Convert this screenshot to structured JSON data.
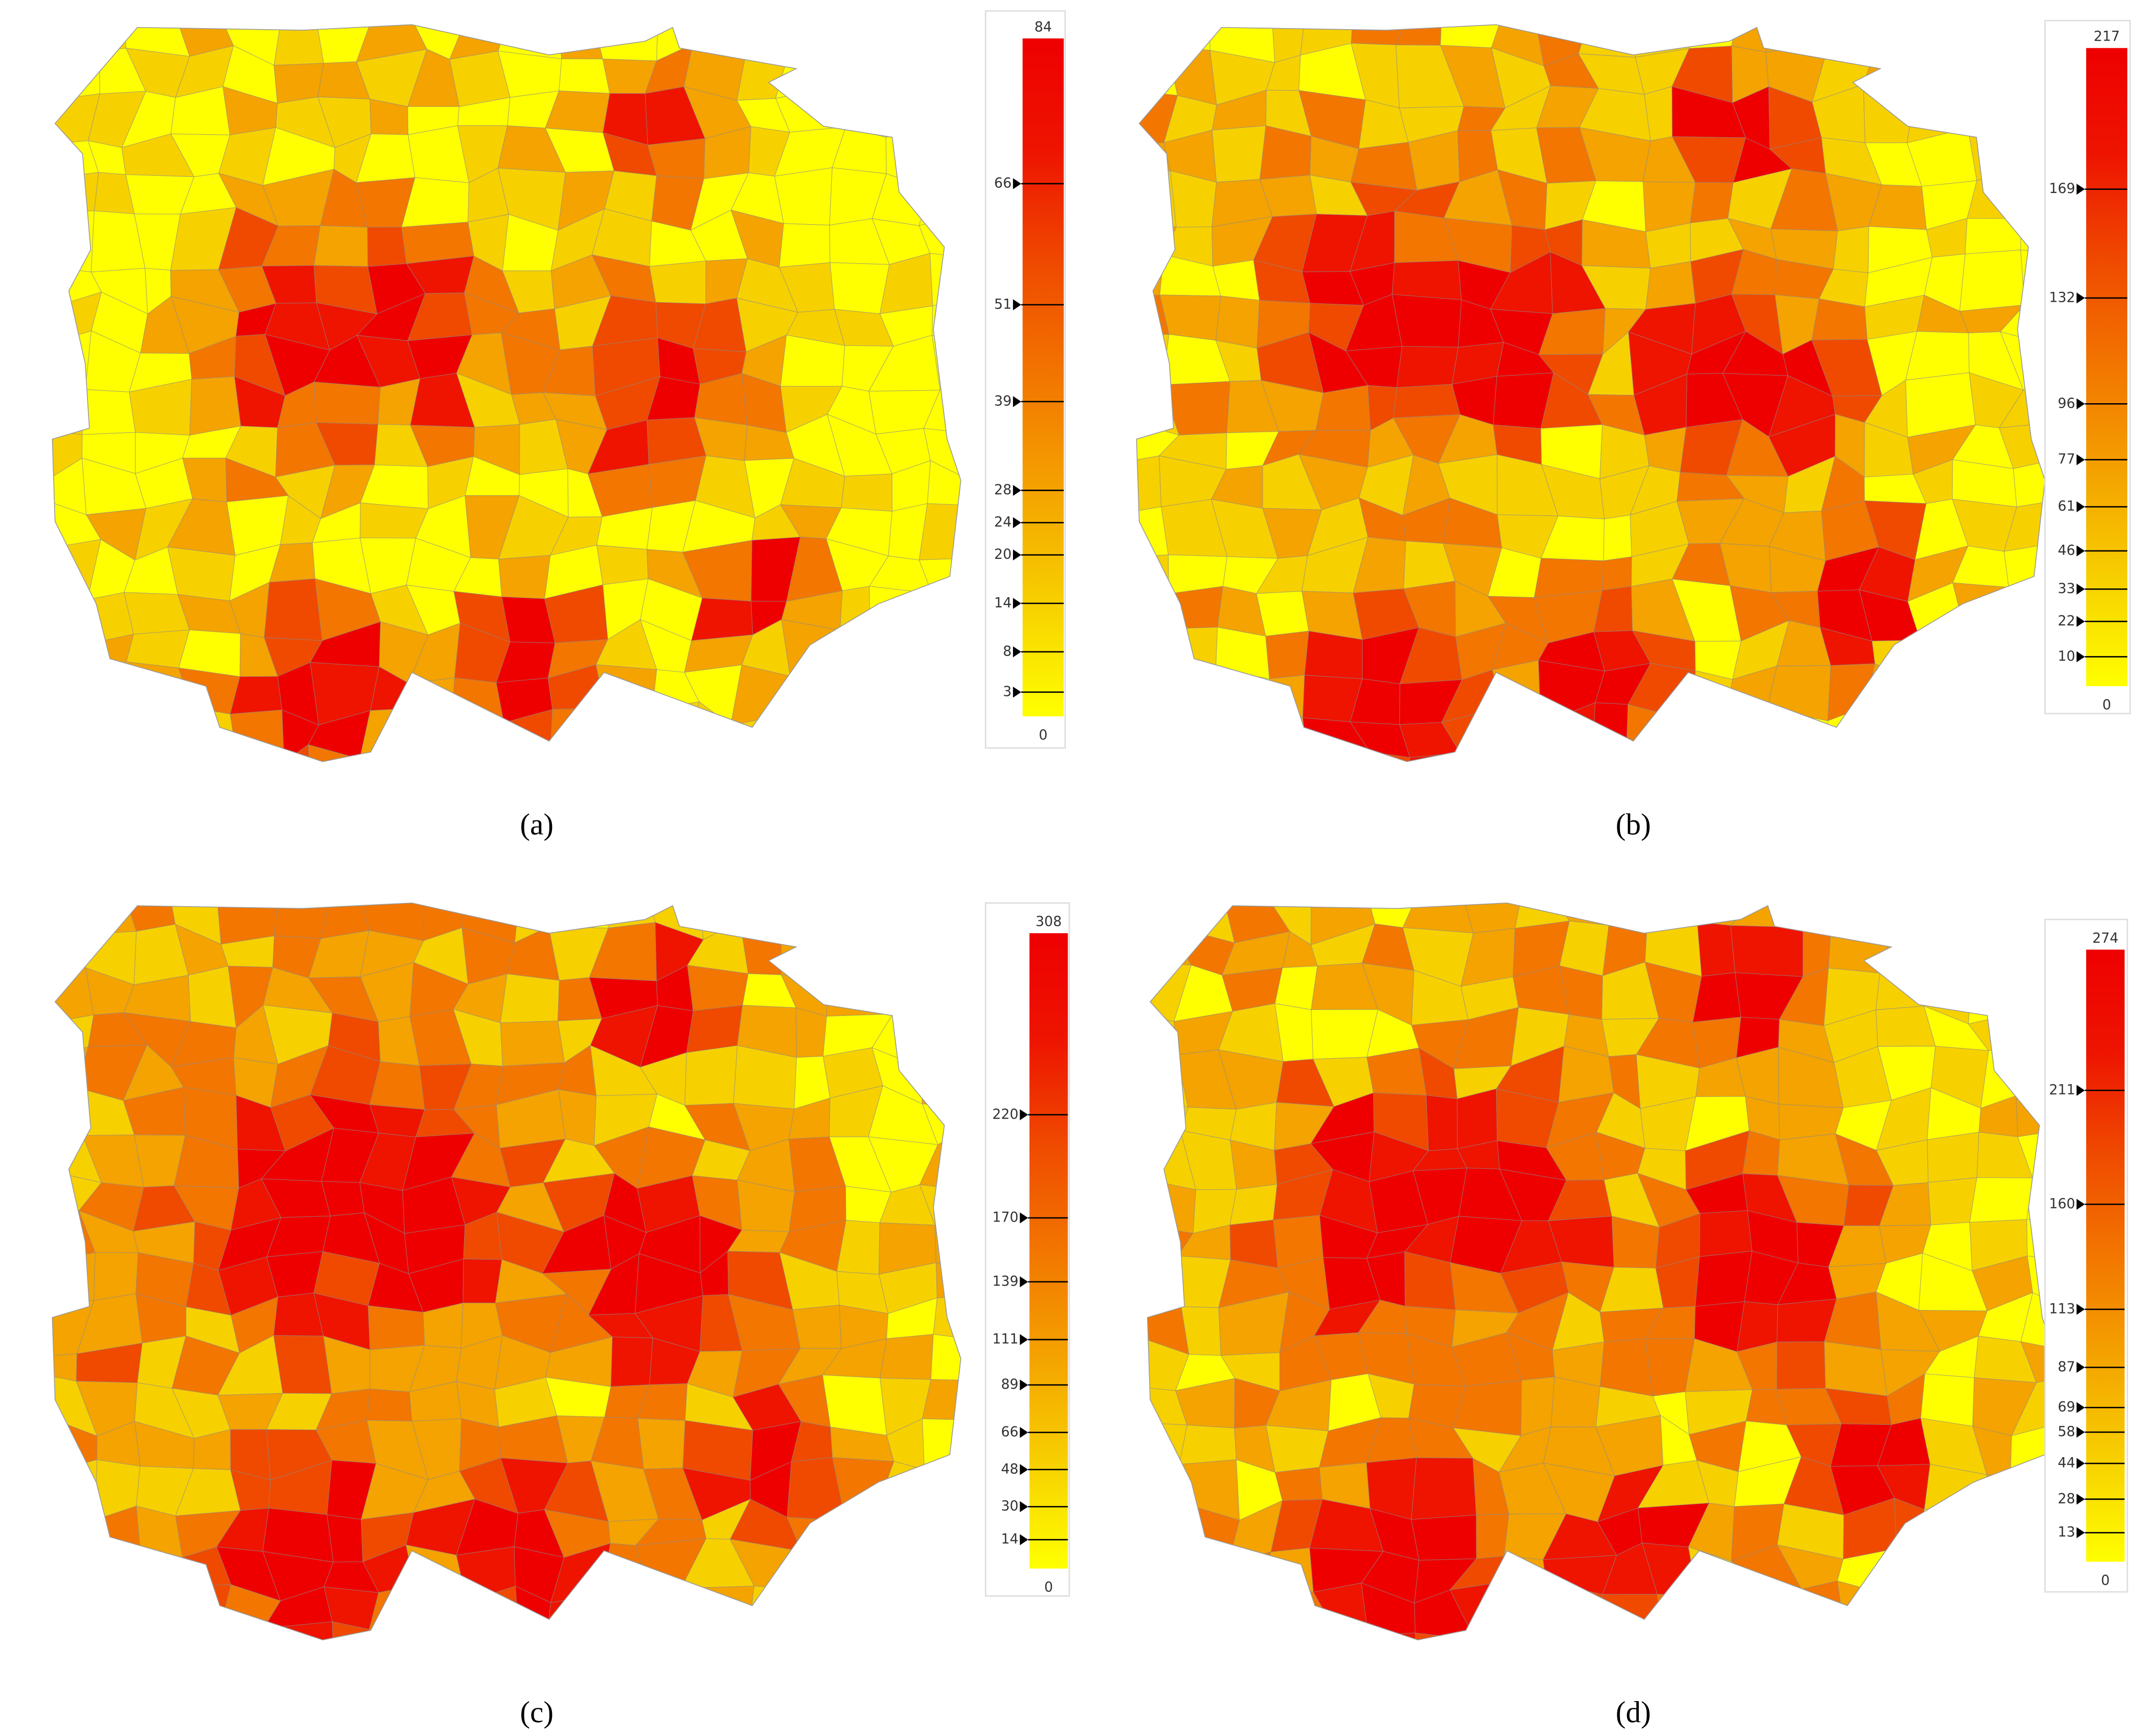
{
  "panels": [
    {
      "caption": "(a)",
      "scale": {
        "ylim": [
          0,
          84
        ],
        "yticks": [
          3,
          8,
          14,
          20,
          24,
          28,
          39,
          51,
          66
        ],
        "colors": [
          "#ffff00",
          "#f7d000",
          "#f4a300",
          "#f27600",
          "#ef4a00",
          "#ee1400",
          "#ee0000"
        ]
      }
    },
    {
      "caption": "(b)",
      "scale": {
        "ylim": [
          0,
          217
        ],
        "yticks": [
          10,
          22,
          33,
          46,
          61,
          77,
          96,
          132,
          169
        ],
        "colors": [
          "#ffff00",
          "#f7d000",
          "#f4a300",
          "#f27600",
          "#ef4a00",
          "#ee1400",
          "#ee0000"
        ]
      }
    },
    {
      "caption": "(c)",
      "scale": {
        "ylim": [
          0,
          308
        ],
        "yticks": [
          14,
          30,
          48,
          66,
          89,
          111,
          139,
          170,
          220
        ],
        "colors": [
          "#ffff00",
          "#f7d000",
          "#f4a300",
          "#f27600",
          "#ef4a00",
          "#ee1400",
          "#ee0000"
        ]
      }
    },
    {
      "caption": "(d)",
      "scale": {
        "ylim": [
          0,
          274
        ],
        "yticks": [
          13,
          28,
          44,
          58,
          69,
          87,
          113,
          160,
          211
        ],
        "colors": [
          "#ffff00",
          "#f7d000",
          "#f4a300",
          "#f27600",
          "#ef4a00",
          "#ee1400",
          "#ee0000"
        ]
      }
    }
  ]
}
